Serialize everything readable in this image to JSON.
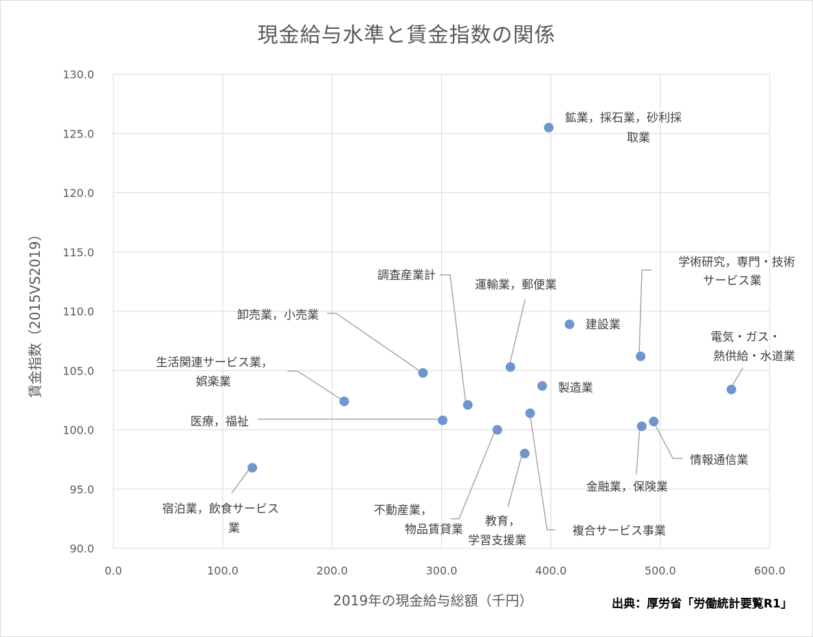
{
  "chart_data": {
    "type": "scatter",
    "title": "現金給与水準と賃金指数の関係",
    "xlabel": "2019年の現金給与総額（千円）",
    "ylabel": "賃金指数（2015VS2019）",
    "xlim": [
      0,
      600
    ],
    "ylim": [
      90,
      130
    ],
    "x_ticks": [
      "0.0",
      "100.0",
      "200.0",
      "300.0",
      "400.0",
      "500.0",
      "600.0"
    ],
    "y_ticks": [
      "90.0",
      "95.0",
      "100.0",
      "105.0",
      "110.0",
      "115.0",
      "120.0",
      "125.0",
      "130.0"
    ],
    "grid": true,
    "marker_color": "#6f95ce",
    "points": [
      {
        "label": "鉱業，採石業，砂利採取業",
        "x": 398,
        "y": 125.5
      },
      {
        "label": "学術研究，専門・技術サービス業",
        "x": 482,
        "y": 106.2
      },
      {
        "label": "電気・ガス・熱供給・水道業",
        "x": 565,
        "y": 103.4
      },
      {
        "label": "建設業",
        "x": 417,
        "y": 108.9
      },
      {
        "label": "運輸業，郵便業",
        "x": 363,
        "y": 105.3
      },
      {
        "label": "製造業",
        "x": 392,
        "y": 103.7
      },
      {
        "label": "調査産業計",
        "x": 324,
        "y": 102.1
      },
      {
        "label": "卸売業，小売業",
        "x": 283,
        "y": 104.8
      },
      {
        "label": "生活関連サービス業，娯楽業",
        "x": 211,
        "y": 102.4
      },
      {
        "label": "医療，福祉",
        "x": 301,
        "y": 100.8
      },
      {
        "label": "不動産業，物品賃貸業",
        "x": 351,
        "y": 100.0
      },
      {
        "label": "複合サービス事業",
        "x": 381,
        "y": 101.4
      },
      {
        "label": "教育，学習支援業",
        "x": 376,
        "y": 98.0
      },
      {
        "label": "金融業，保険業",
        "x": 483,
        "y": 100.3
      },
      {
        "label": "情報通信業",
        "x": 494,
        "y": 100.7
      },
      {
        "label": "宿泊業，飲食サービス業",
        "x": 127,
        "y": 96.8
      }
    ]
  },
  "labels": {
    "mining": [
      "鉱業，採石業，砂利採",
      "取業"
    ],
    "academic": [
      "学術研究，専門・技術",
      "サービス業"
    ],
    "electric": [
      "電気・ガス・",
      "熱供給・水道業"
    ],
    "construction": [
      "建設業"
    ],
    "transport": [
      "運輸業，郵便業"
    ],
    "manufacturing": [
      "製造業"
    ],
    "survey_total": [
      "調査産業計"
    ],
    "wholesale": [
      "卸売業，小売業"
    ],
    "living": [
      "生活関連サービス業，",
      "娯楽業"
    ],
    "medical": [
      "医療，福祉"
    ],
    "realestate": [
      "不動産業，",
      "物品賃貸業"
    ],
    "compound": [
      "複合サービス事業"
    ],
    "education": [
      "教育，",
      "学習支援業"
    ],
    "finance": [
      "金融業，保険業"
    ],
    "info": [
      "情報通信業"
    ],
    "lodging": [
      "宿泊業，飲食サービス",
      "業"
    ]
  },
  "source": "出典：厚労省「労働統計要覧R1」"
}
